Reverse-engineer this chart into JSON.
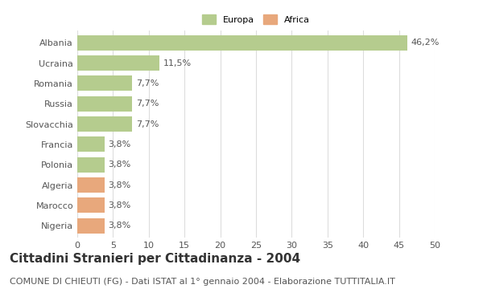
{
  "categories": [
    "Albania",
    "Ucraina",
    "Romania",
    "Russia",
    "Slovacchia",
    "Francia",
    "Polonia",
    "Algeria",
    "Marocco",
    "Nigeria"
  ],
  "values": [
    46.2,
    11.5,
    7.7,
    7.7,
    7.7,
    3.8,
    3.8,
    3.8,
    3.8,
    3.8
  ],
  "labels": [
    "46,2%",
    "11,5%",
    "7,7%",
    "7,7%",
    "7,7%",
    "3,8%",
    "3,8%",
    "3,8%",
    "3,8%",
    "3,8%"
  ],
  "colors": [
    "#b5cc8e",
    "#b5cc8e",
    "#b5cc8e",
    "#b5cc8e",
    "#b5cc8e",
    "#b5cc8e",
    "#b5cc8e",
    "#e8a87c",
    "#e8a87c",
    "#e8a87c"
  ],
  "legend_labels": [
    "Europa",
    "Africa"
  ],
  "legend_colors": [
    "#b5cc8e",
    "#e8a87c"
  ],
  "title": "Cittadini Stranieri per Cittadinanza - 2004",
  "subtitle": "COMUNE DI CHIEUTI (FG) - Dati ISTAT al 1° gennaio 2004 - Elaborazione TUTTITALIA.IT",
  "xlim": [
    0,
    50
  ],
  "xticks": [
    0,
    5,
    10,
    15,
    20,
    25,
    30,
    35,
    40,
    45,
    50
  ],
  "background_color": "#ffffff",
  "grid_color": "#dddddd",
  "bar_height": 0.75,
  "title_fontsize": 11,
  "subtitle_fontsize": 8,
  "label_fontsize": 8,
  "tick_fontsize": 8
}
